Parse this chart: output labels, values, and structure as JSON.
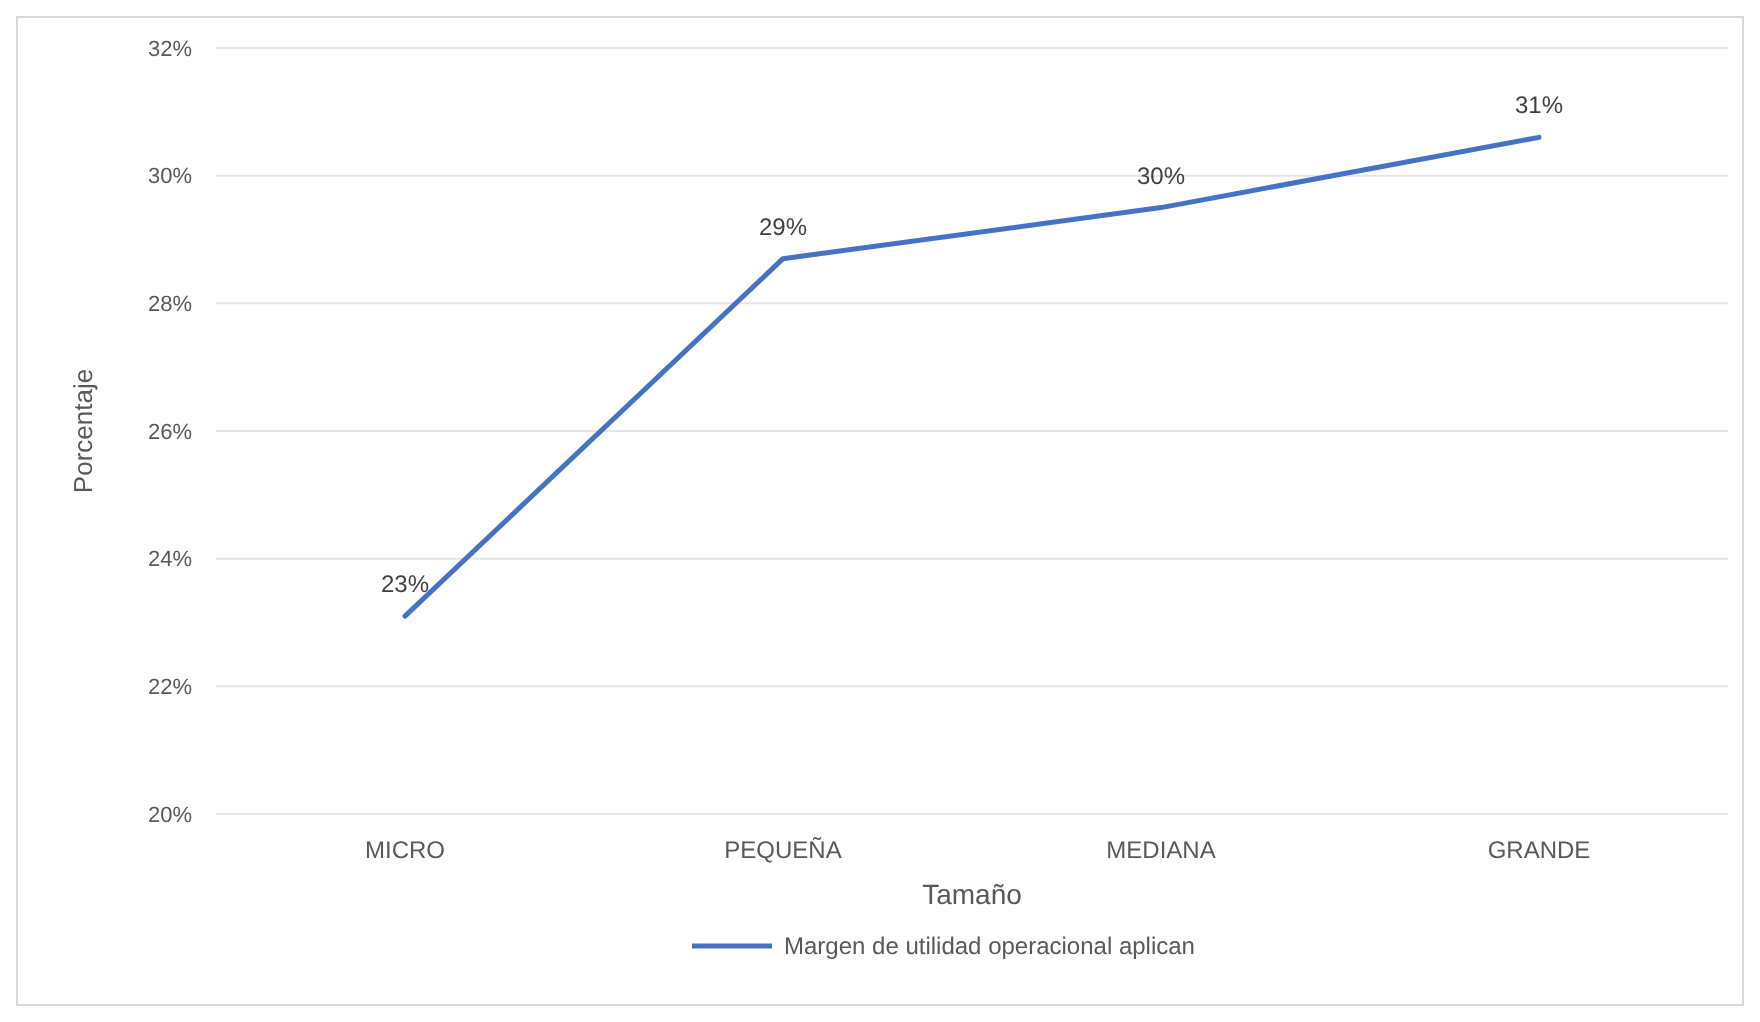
{
  "chart_data": {
    "type": "line",
    "xlabel": "Tamaño",
    "ylabel": "Porcentaje",
    "categories": [
      "MICRO",
      "PEQUEÑA",
      "MEDIANA",
      "GRANDE"
    ],
    "series": [
      {
        "name": "Margen de utilidad operacional aplican",
        "color": "#4472c4",
        "values": [
          23.1,
          28.7,
          29.5,
          30.6
        ],
        "value_labels": [
          "23%",
          "29%",
          "30%",
          "31%"
        ]
      }
    ],
    "ylim": [
      20,
      32
    ],
    "yticks": [
      {
        "value": 20,
        "label": "20%"
      },
      {
        "value": 22,
        "label": "22%"
      },
      {
        "value": 24,
        "label": "24%"
      },
      {
        "value": 26,
        "label": "26%"
      },
      {
        "value": 28,
        "label": "28%"
      },
      {
        "value": 30,
        "label": "30%"
      },
      {
        "value": 32,
        "label": "32%"
      }
    ],
    "grid": "y",
    "legend": "bottom",
    "marker": "none",
    "line_style": "solid"
  }
}
